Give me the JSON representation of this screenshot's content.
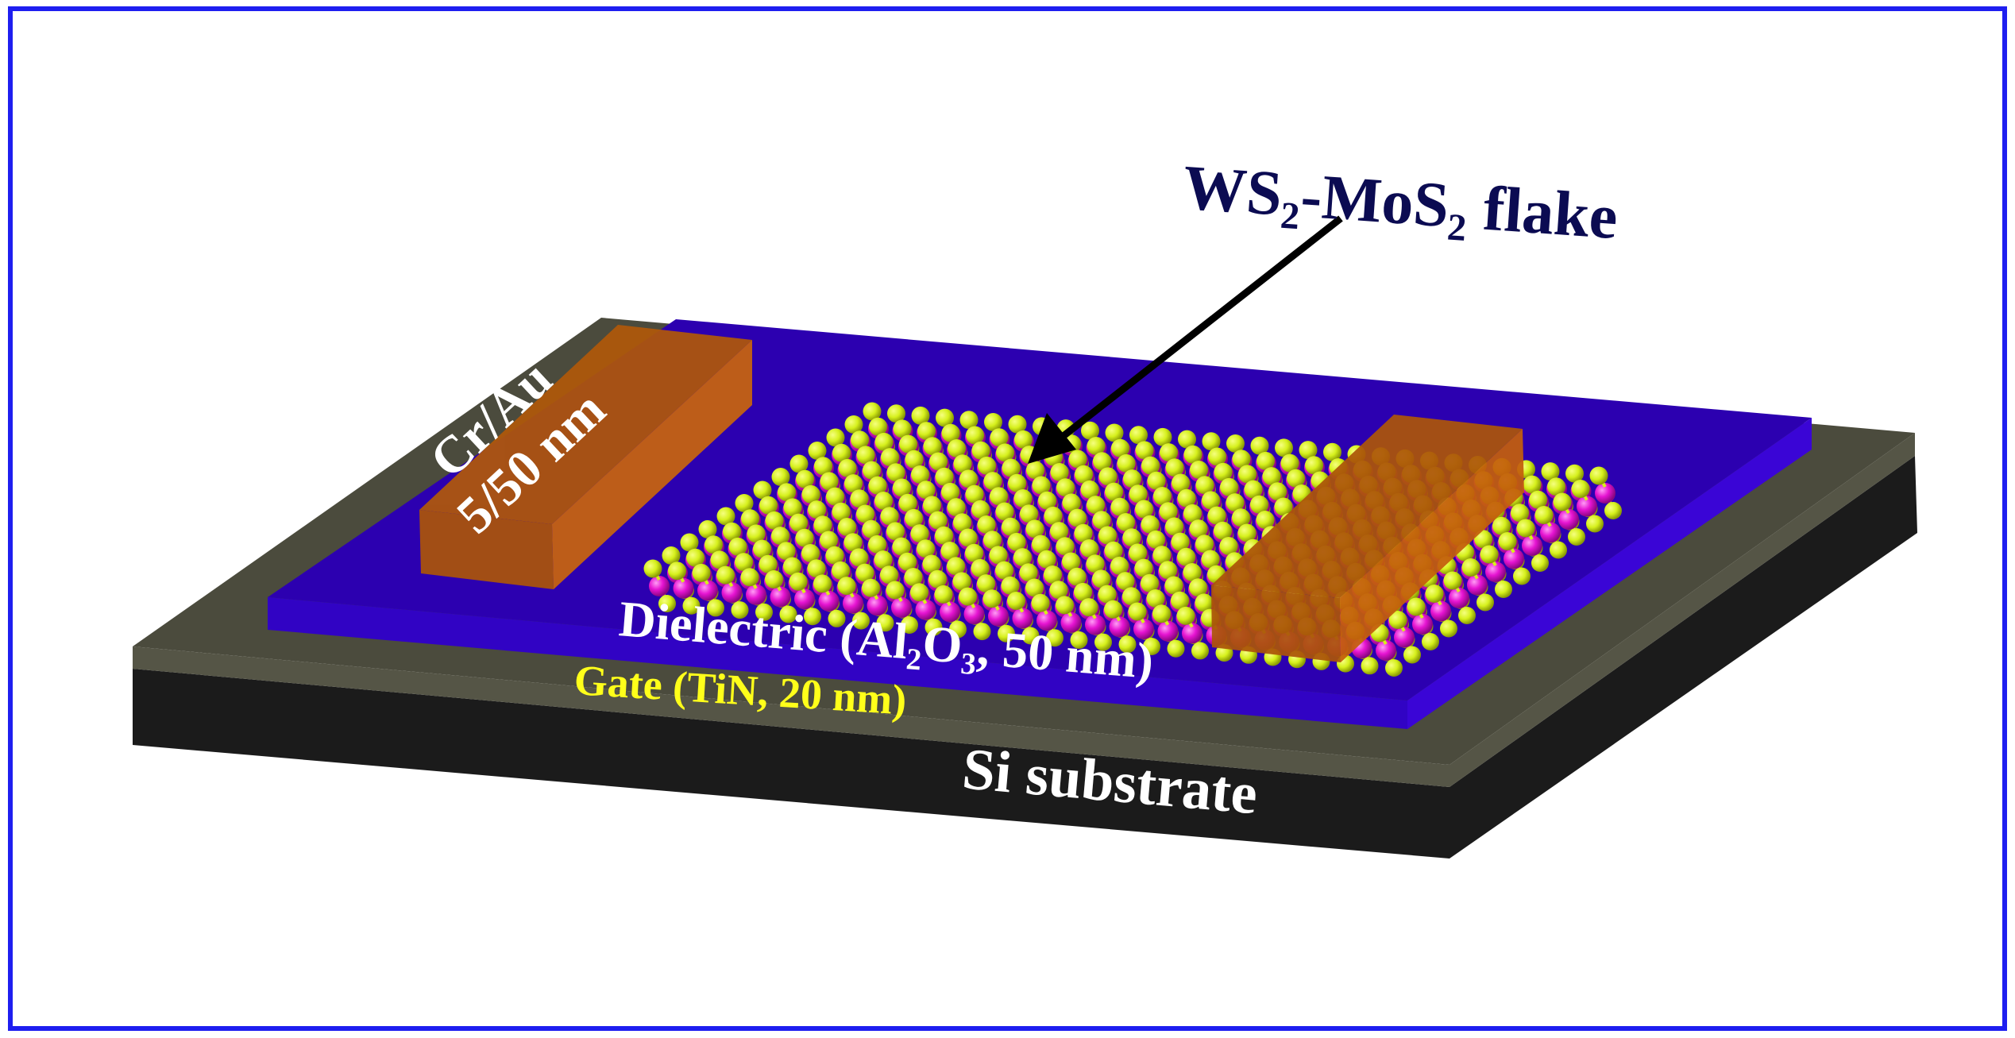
{
  "labels": {
    "flake": "WS₂-MoS₂ flake",
    "electrode_line1": "Cr/Au",
    "electrode_line2": "5/50 nm",
    "dielectric": "Dielectric (Al₂O₃, 50 nm)",
    "gate": "Gate (TiN, 20 nm)",
    "substrate": "Si substrate"
  },
  "colors": {
    "frame": "#1e1ef0",
    "substrate": "#1b1b1b",
    "gate": "#4b4b3d",
    "dielectric_top": "#2c00b0",
    "dielectric_side": "#3a05d6",
    "electrode": "#c45f0c",
    "sulfur": "#d6f01c",
    "metal": "#e614d2",
    "flake_label": "#0b0b52",
    "gate_label": "#ffff1a"
  }
}
